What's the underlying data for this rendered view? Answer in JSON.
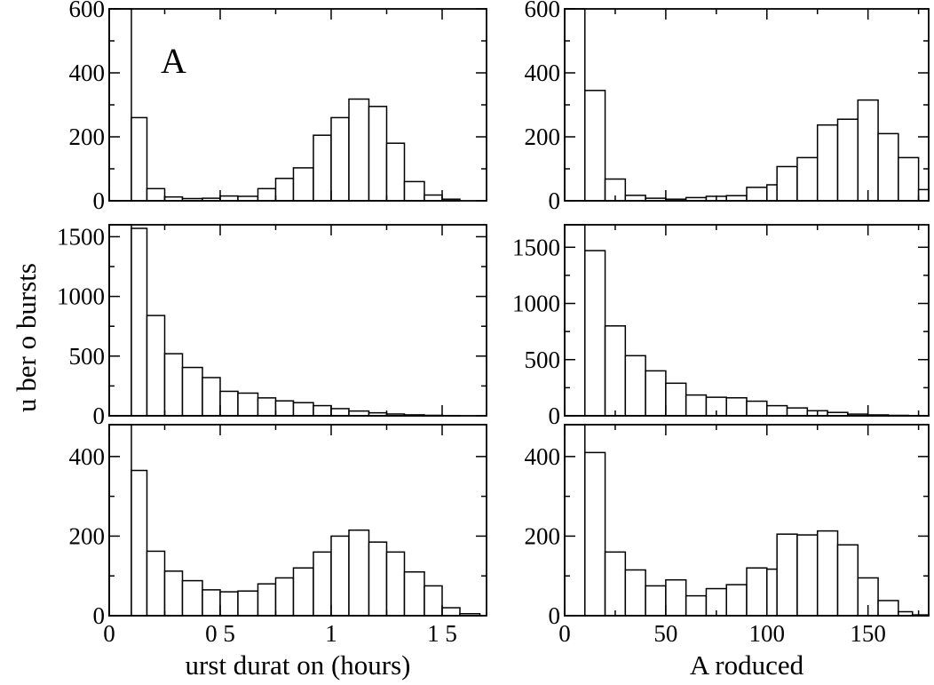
{
  "figure": {
    "ylabel": "u ber o bursts",
    "colors": {
      "bar_fill": "#ffffff",
      "stroke": "#000000"
    }
  },
  "chart_data": [
    {
      "type": "bar",
      "panel_label": "A",
      "xlim": [
        0,
        1.7
      ],
      "ylim": [
        0,
        600
      ],
      "yticks": [
        "0",
        "200",
        "400",
        "600"
      ],
      "bins": [
        [
          0,
          0.1,
          600
        ],
        [
          0.1,
          0.17,
          260
        ],
        [
          0.17,
          0.25,
          38
        ],
        [
          0.25,
          0.33,
          12
        ],
        [
          0.33,
          0.42,
          7
        ],
        [
          0.42,
          0.5,
          8
        ],
        [
          0.5,
          0.58,
          15
        ],
        [
          0.58,
          0.67,
          14
        ],
        [
          0.67,
          0.75,
          38
        ],
        [
          0.75,
          0.83,
          70
        ],
        [
          0.83,
          0.92,
          103
        ],
        [
          0.92,
          1.0,
          205
        ],
        [
          1.0,
          1.08,
          260
        ],
        [
          1.08,
          1.17,
          318
        ],
        [
          1.17,
          1.25,
          295
        ],
        [
          1.25,
          1.33,
          180
        ],
        [
          1.33,
          1.42,
          60
        ],
        [
          1.42,
          1.5,
          18
        ],
        [
          1.5,
          1.58,
          5
        ]
      ]
    },
    {
      "type": "bar",
      "panel_label": "",
      "xlim": [
        0,
        180
      ],
      "ylim": [
        0,
        600
      ],
      "yticks": [
        "0",
        "200",
        "400",
        "600"
      ],
      "bins": [
        [
          0,
          10,
          600
        ],
        [
          10,
          20,
          345
        ],
        [
          20,
          30,
          68
        ],
        [
          30,
          40,
          17
        ],
        [
          40,
          50,
          8
        ],
        [
          50,
          60,
          5
        ],
        [
          60,
          70,
          10
        ],
        [
          70,
          80,
          14
        ],
        [
          80,
          90,
          16
        ],
        [
          90,
          100,
          42
        ],
        [
          100,
          105,
          50
        ],
        [
          105,
          115,
          107
        ],
        [
          115,
          125,
          135
        ],
        [
          125,
          135,
          237
        ],
        [
          135,
          145,
          255
        ],
        [
          145,
          155,
          315
        ],
        [
          155,
          165,
          210
        ],
        [
          165,
          175,
          135
        ],
        [
          175,
          180,
          35
        ]
      ]
    },
    {
      "type": "bar",
      "panel_label": "",
      "xlim": [
        0,
        1.7
      ],
      "ylim": [
        0,
        1600
      ],
      "yticks": [
        "0",
        "500",
        "1000",
        "1500"
      ],
      "bins": [
        [
          0,
          0.1,
          1600
        ],
        [
          0.1,
          0.17,
          1570
        ],
        [
          0.17,
          0.25,
          840
        ],
        [
          0.25,
          0.33,
          520
        ],
        [
          0.33,
          0.42,
          405
        ],
        [
          0.42,
          0.5,
          320
        ],
        [
          0.5,
          0.58,
          205
        ],
        [
          0.58,
          0.67,
          190
        ],
        [
          0.67,
          0.75,
          150
        ],
        [
          0.75,
          0.83,
          125
        ],
        [
          0.83,
          0.92,
          110
        ],
        [
          0.92,
          1.0,
          85
        ],
        [
          1.0,
          1.08,
          60
        ],
        [
          1.08,
          1.17,
          40
        ],
        [
          1.17,
          1.25,
          25
        ],
        [
          1.25,
          1.33,
          15
        ],
        [
          1.33,
          1.42,
          8
        ],
        [
          1.42,
          1.5,
          4
        ],
        [
          1.5,
          1.58,
          2
        ]
      ]
    },
    {
      "type": "bar",
      "panel_label": "",
      "xlim": [
        0,
        180
      ],
      "ylim": [
        0,
        1700
      ],
      "yticks": [
        "0",
        "500",
        "1000",
        "1500"
      ],
      "bins": [
        [
          0,
          10,
          1700
        ],
        [
          10,
          20,
          1470
        ],
        [
          20,
          30,
          800
        ],
        [
          30,
          40,
          535
        ],
        [
          40,
          50,
          400
        ],
        [
          50,
          60,
          290
        ],
        [
          60,
          70,
          185
        ],
        [
          70,
          80,
          165
        ],
        [
          80,
          90,
          160
        ],
        [
          90,
          100,
          130
        ],
        [
          100,
          110,
          90
        ],
        [
          110,
          120,
          70
        ],
        [
          120,
          130,
          45
        ],
        [
          130,
          140,
          30
        ],
        [
          140,
          150,
          15
        ],
        [
          150,
          160,
          8
        ],
        [
          160,
          170,
          4
        ],
        [
          170,
          180,
          2
        ]
      ]
    },
    {
      "type": "bar",
      "panel_label": "",
      "xlim": [
        0,
        1.7
      ],
      "ylim": [
        0,
        480
      ],
      "yticks": [
        "0",
        "200",
        "400"
      ],
      "xticks": [
        "0",
        "0 5",
        "1",
        "1 5"
      ],
      "xlabel": "urst durat on (hours)",
      "bins": [
        [
          0,
          0.1,
          480
        ],
        [
          0.1,
          0.17,
          365
        ],
        [
          0.17,
          0.25,
          162
        ],
        [
          0.25,
          0.33,
          112
        ],
        [
          0.33,
          0.42,
          88
        ],
        [
          0.42,
          0.5,
          65
        ],
        [
          0.5,
          0.58,
          60
        ],
        [
          0.58,
          0.67,
          62
        ],
        [
          0.67,
          0.75,
          80
        ],
        [
          0.75,
          0.83,
          95
        ],
        [
          0.83,
          0.92,
          120
        ],
        [
          0.92,
          1.0,
          160
        ],
        [
          1.0,
          1.08,
          200
        ],
        [
          1.08,
          1.17,
          215
        ],
        [
          1.17,
          1.25,
          185
        ],
        [
          1.25,
          1.33,
          160
        ],
        [
          1.33,
          1.42,
          110
        ],
        [
          1.42,
          1.5,
          75
        ],
        [
          1.5,
          1.58,
          20
        ],
        [
          1.58,
          1.67,
          5
        ]
      ]
    },
    {
      "type": "bar",
      "panel_label": "",
      "xlim": [
        0,
        180
      ],
      "ylim": [
        0,
        480
      ],
      "yticks": [
        "0",
        "200",
        "400"
      ],
      "xticks": [
        "0",
        "50",
        "100",
        "150"
      ],
      "xlabel": "A roduced",
      "bins": [
        [
          0,
          10,
          480
        ],
        [
          10,
          20,
          410
        ],
        [
          20,
          30,
          160
        ],
        [
          30,
          40,
          115
        ],
        [
          40,
          50,
          75
        ],
        [
          50,
          60,
          90
        ],
        [
          60,
          70,
          50
        ],
        [
          70,
          80,
          68
        ],
        [
          80,
          90,
          78
        ],
        [
          90,
          100,
          120
        ],
        [
          100,
          105,
          117
        ],
        [
          105,
          115,
          205
        ],
        [
          115,
          125,
          203
        ],
        [
          125,
          135,
          213
        ],
        [
          135,
          145,
          178
        ],
        [
          145,
          155,
          95
        ],
        [
          155,
          165,
          38
        ],
        [
          165,
          172,
          10
        ],
        [
          172,
          180,
          2
        ]
      ]
    }
  ]
}
